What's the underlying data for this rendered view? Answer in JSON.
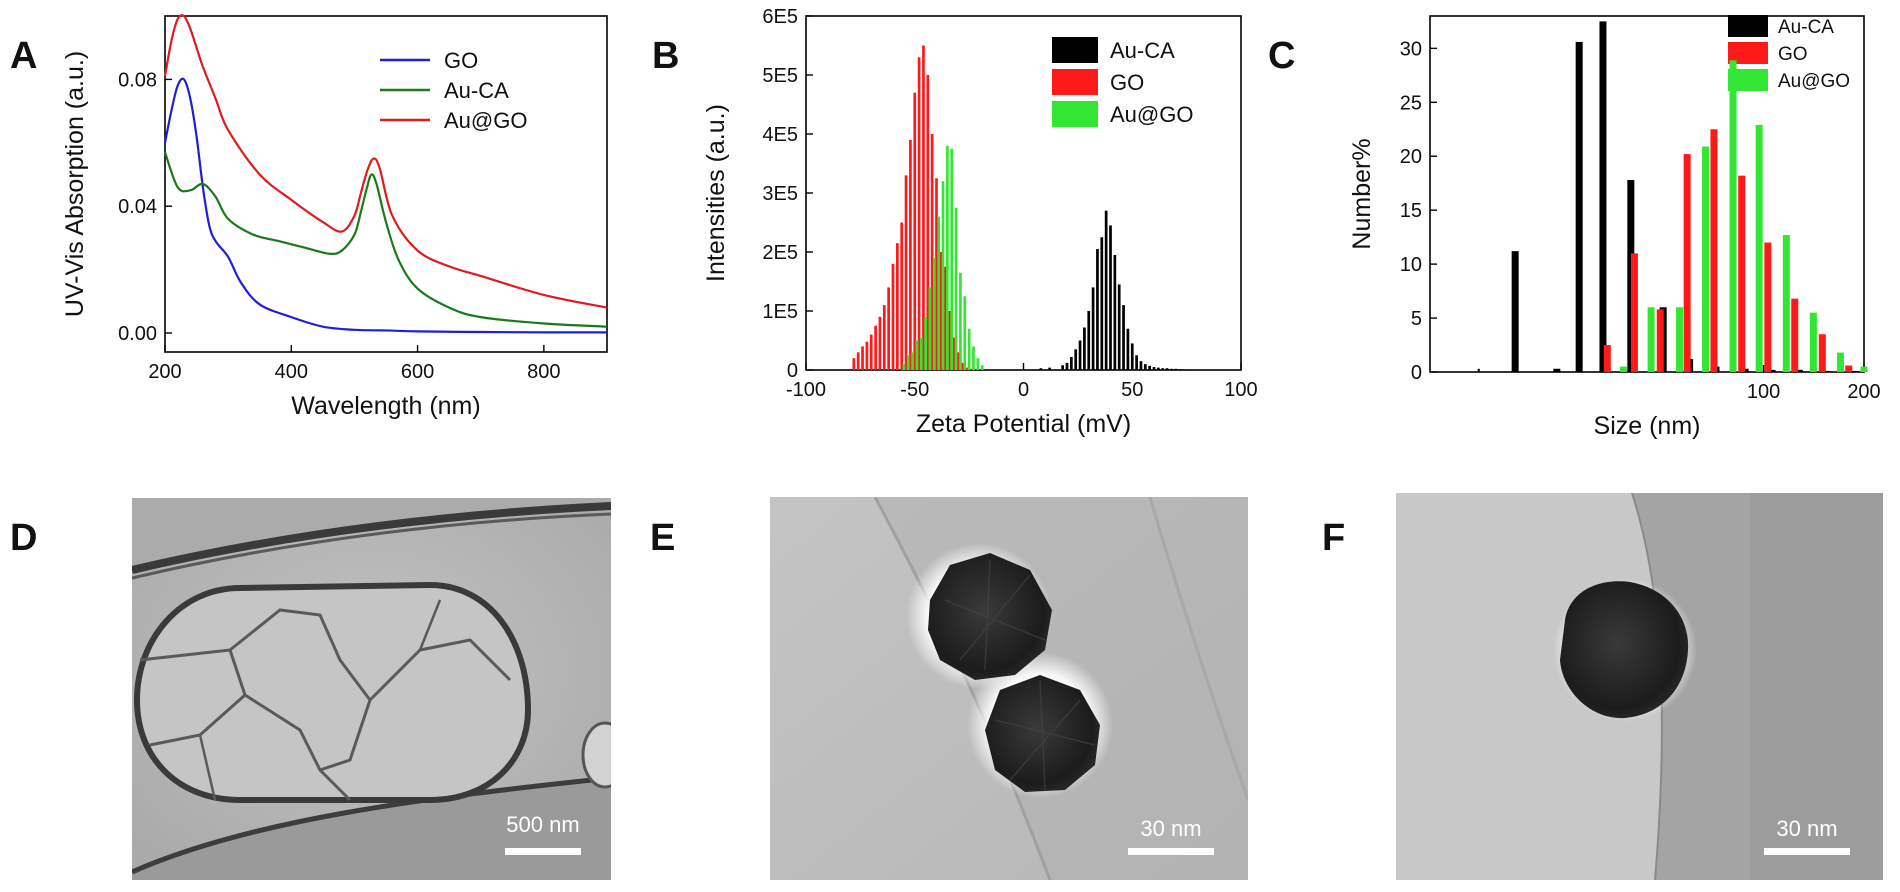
{
  "panels": {
    "A": "A",
    "B": "B",
    "C": "C",
    "D": "D",
    "E": "E",
    "F": "F"
  },
  "colors": {
    "GO_line": "#1f1fd6",
    "AuCA_line": "#1a7a1a",
    "AuGO_line": "#e01b1b",
    "black": "#000000",
    "red": "#ff1a1a",
    "green": "#33e633"
  },
  "chart_data": [
    {
      "id": "A",
      "type": "line",
      "xlabel": "Wavelength (nm)",
      "ylabel": "UV-Vis Absorption (a.u.)",
      "xlim": [
        200,
        900
      ],
      "ylim": [
        -0.006,
        0.1
      ],
      "xticks": [
        200,
        400,
        600,
        800
      ],
      "xtick_labels": [
        "200",
        "400",
        "600",
        "800"
      ],
      "yticks": [
        0.0,
        0.04,
        0.08
      ],
      "ytick_labels": [
        "0.00",
        "0.04",
        "0.08"
      ],
      "legend": "top-right",
      "series": [
        {
          "name": "GO",
          "x": [
            200,
            210,
            220,
            230,
            240,
            250,
            260,
            270,
            280,
            300,
            320,
            350,
            400,
            450,
            500,
            550,
            600,
            700,
            800,
            900
          ],
          "y": [
            0.06,
            0.07,
            0.078,
            0.08,
            0.074,
            0.062,
            0.046,
            0.034,
            0.029,
            0.024,
            0.016,
            0.009,
            0.005,
            0.002,
            0.001,
            0.0008,
            0.0005,
            0.0003,
            0.0002,
            0.0002
          ]
        },
        {
          "name": "Au-CA",
          "x": [
            200,
            220,
            240,
            260,
            280,
            300,
            340,
            380,
            420,
            460,
            480,
            500,
            510,
            520,
            527,
            535,
            550,
            570,
            600,
            650,
            700,
            800,
            900
          ],
          "y": [
            0.057,
            0.046,
            0.045,
            0.047,
            0.043,
            0.036,
            0.031,
            0.029,
            0.027,
            0.025,
            0.026,
            0.031,
            0.038,
            0.046,
            0.05,
            0.047,
            0.035,
            0.023,
            0.014,
            0.008,
            0.005,
            0.003,
            0.002
          ]
        },
        {
          "name": "Au@GO",
          "x": [
            200,
            210,
            220,
            230,
            240,
            250,
            260,
            280,
            300,
            350,
            400,
            450,
            480,
            500,
            510,
            520,
            530,
            540,
            560,
            600,
            650,
            700,
            800,
            900
          ],
          "y": [
            0.081,
            0.092,
            0.099,
            0.1,
            0.096,
            0.09,
            0.084,
            0.074,
            0.064,
            0.05,
            0.042,
            0.035,
            0.032,
            0.037,
            0.044,
            0.051,
            0.055,
            0.052,
            0.037,
            0.026,
            0.021,
            0.018,
            0.012,
            0.008
          ]
        }
      ]
    },
    {
      "id": "B",
      "type": "bar",
      "xlabel": "Zeta Potential (mV)",
      "ylabel": "Intensities (a.u.)",
      "xlim": [
        -100,
        100
      ],
      "ylim": [
        0,
        600000
      ],
      "xticks": [
        -100,
        -50,
        0,
        50,
        100
      ],
      "xtick_labels": [
        "-100",
        "-50",
        "0",
        "50",
        "100"
      ],
      "yticks": [
        0,
        100000,
        200000,
        300000,
        400000,
        500000,
        600000
      ],
      "ytick_labels": [
        "0",
        "1E5",
        "2E5",
        "3E5",
        "4E5",
        "5E5",
        "6E5"
      ],
      "legend": "top-right",
      "series": [
        {
          "name": "Au-CA",
          "x": [
            8,
            12,
            18,
            20,
            22,
            24,
            26,
            28,
            30,
            32,
            34,
            36,
            38,
            40,
            42,
            44,
            46,
            48,
            50,
            52,
            54,
            56,
            58,
            60,
            62,
            64,
            66,
            68,
            70,
            72,
            74
          ],
          "y": [
            3000,
            4000,
            8000,
            12000,
            22000,
            35000,
            50000,
            72000,
            100000,
            140000,
            205000,
            225000,
            270000,
            245000,
            195000,
            145000,
            110000,
            70000,
            45000,
            25000,
            15000,
            10000,
            7000,
            5000,
            4000,
            3000,
            3000,
            2000,
            2000,
            1500,
            1000
          ]
        },
        {
          "name": "GO",
          "x": [
            -78,
            -76,
            -74,
            -72,
            -70,
            -68,
            -66,
            -64,
            -62,
            -60,
            -58,
            -56,
            -54,
            -52,
            -50,
            -48,
            -46,
            -44,
            -42,
            -40,
            -38,
            -36,
            -34,
            -32,
            -30,
            -28,
            -26
          ],
          "y": [
            20000,
            30000,
            40000,
            48000,
            60000,
            75000,
            90000,
            110000,
            140000,
            180000,
            215000,
            250000,
            330000,
            390000,
            470000,
            530000,
            550000,
            500000,
            400000,
            325000,
            200000,
            175000,
            100000,
            55000,
            30000,
            12000,
            4000
          ]
        },
        {
          "name": "Au@GO",
          "x": [
            -55,
            -53,
            -51,
            -49,
            -47,
            -45,
            -43,
            -41,
            -39,
            -37,
            -35,
            -33,
            -31,
            -29,
            -27,
            -25,
            -23,
            -21,
            -19
          ],
          "y": [
            10000,
            25000,
            30000,
            50000,
            55000,
            90000,
            140000,
            190000,
            260000,
            320000,
            380000,
            375000,
            275000,
            165000,
            125000,
            70000,
            40000,
            20000,
            8000
          ]
        }
      ]
    },
    {
      "id": "C",
      "type": "bar",
      "xlabel": "Size (nm)",
      "ylabel": "Number%",
      "x_scale": "log",
      "xlim": [
        10,
        200
      ],
      "ylim": [
        0,
        33
      ],
      "xticks": [
        100,
        200
      ],
      "xtick_labels": [
        "100",
        "200"
      ],
      "yticks": [
        0,
        5,
        10,
        15,
        20,
        25,
        30
      ],
      "ytick_labels": [
        "0",
        "5",
        "10",
        "15",
        "20",
        "25",
        "30"
      ],
      "legend": "top-right",
      "series": [
        {
          "name": "Au-CA",
          "x": [
            18,
            24,
            28,
            33,
            40,
            50,
            60,
            72,
            88,
            106,
            128,
            155,
            188
          ],
          "y": [
            11.2,
            0.3,
            30.6,
            32.5,
            17.8,
            6.0,
            1.2,
            0.5,
            0.3,
            0.2,
            0.2,
            0.1,
            0.1
          ],
          "extra_marks": [
            {
              "x": 14,
              "y": 0.3
            }
          ]
        },
        {
          "name": "GO",
          "x": [
            34,
            41,
            49,
            59,
            71,
            86,
            103,
            124,
            150,
            180
          ],
          "y": [
            2.5,
            11.0,
            5.8,
            20.2,
            22.5,
            18.2,
            12.0,
            6.8,
            3.5,
            0.6
          ]
        },
        {
          "name": "Au@GO",
          "x": [
            38,
            46,
            56,
            67,
            81,
            97,
            117,
            141,
            170,
            200
          ],
          "y": [
            0.5,
            6.0,
            6.0,
            20.9,
            28.9,
            22.9,
            12.7,
            5.5,
            1.8,
            0.5
          ]
        }
      ]
    }
  ],
  "tem": {
    "D": {
      "scalebar": "500 nm"
    },
    "E": {
      "scalebar": "30 nm"
    },
    "F": {
      "scalebar": "30 nm"
    }
  }
}
